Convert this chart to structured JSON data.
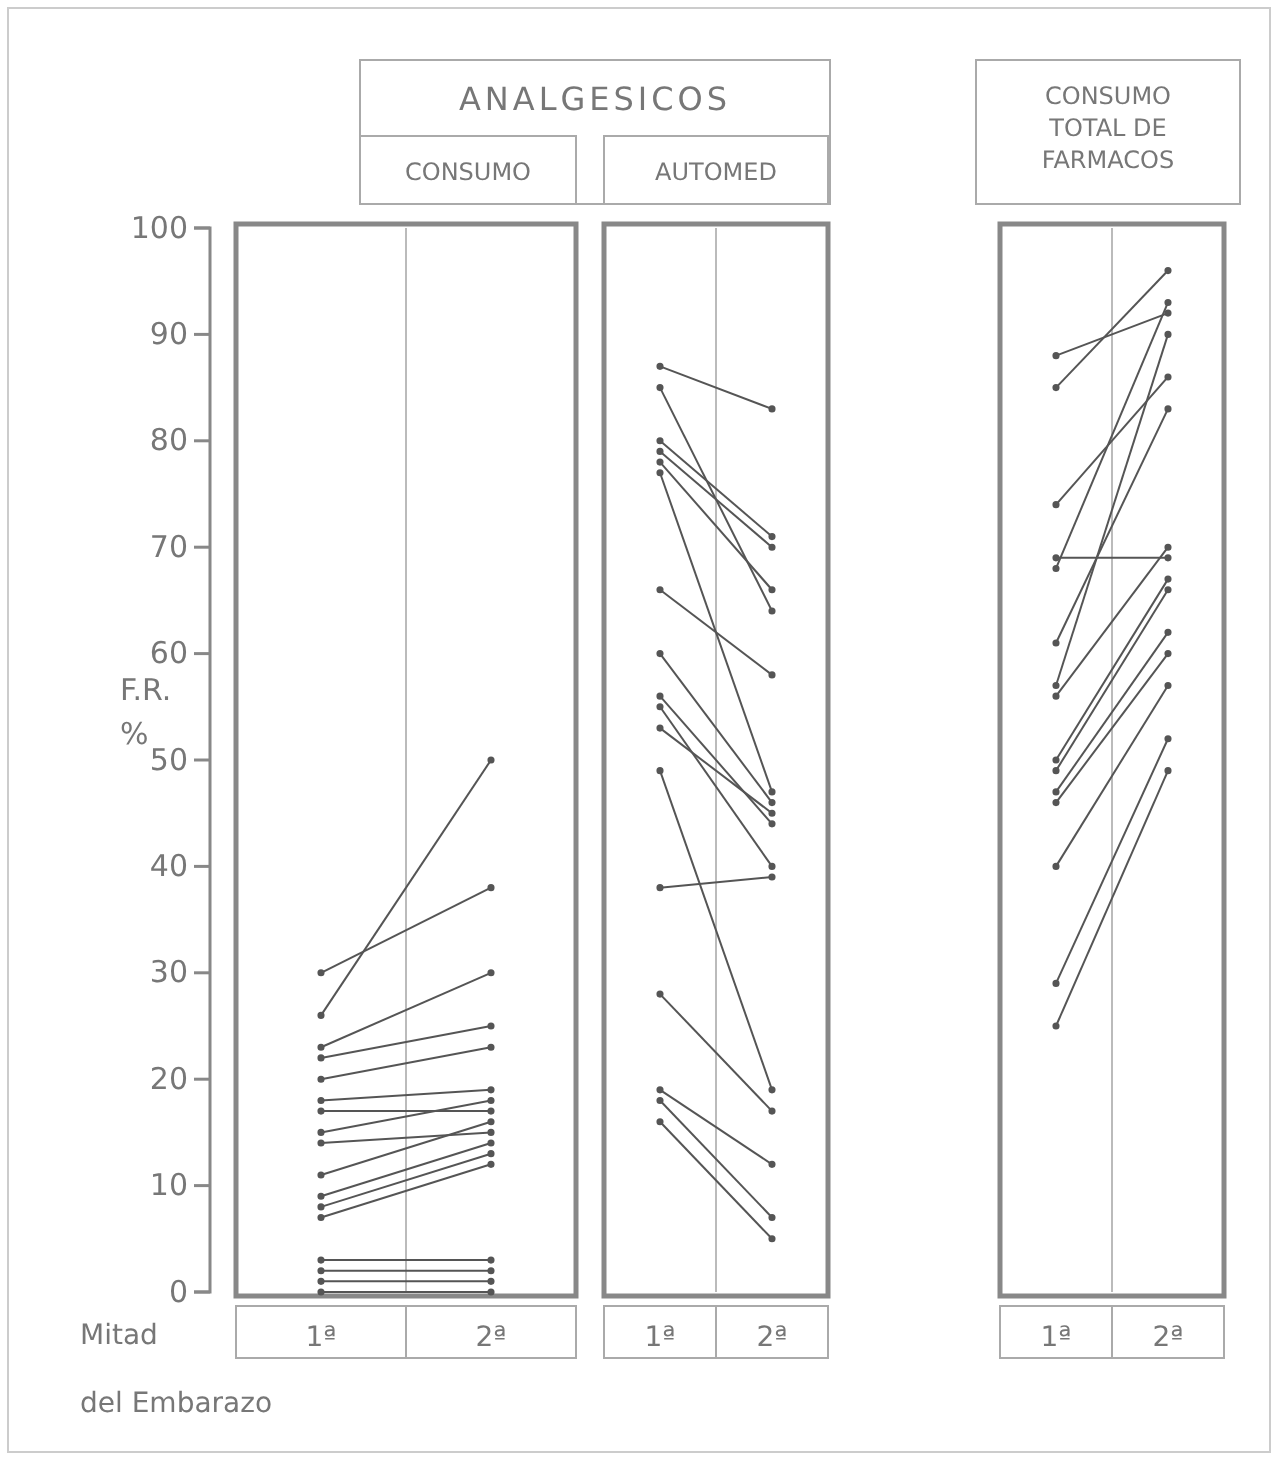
{
  "chart_data": [
    {
      "type": "line",
      "title": "ANALGESICOS",
      "subtitle": "CONSUMO",
      "ylabel": "F.R. %",
      "xlabel": "Mitad del Embarazo",
      "categories": [
        "1ª",
        "2ª"
      ],
      "ylim": [
        0,
        100
      ],
      "yticks": [
        0,
        10,
        20,
        30,
        40,
        50,
        60,
        70,
        80,
        90,
        100
      ],
      "marker": "circle",
      "series": [
        {
          "color": "#555555",
          "values": [
            26,
            50
          ]
        },
        {
          "color": "#555555",
          "values": [
            30,
            38
          ]
        },
        {
          "color": "#555555",
          "values": [
            23,
            30
          ]
        },
        {
          "color": "#555555",
          "values": [
            22,
            25
          ]
        },
        {
          "color": "#555555",
          "values": [
            20,
            23
          ]
        },
        {
          "color": "#555555",
          "values": [
            18,
            19
          ]
        },
        {
          "color": "#555555",
          "values": [
            17,
            17
          ]
        },
        {
          "color": "#555555",
          "values": [
            15,
            18
          ]
        },
        {
          "color": "#555555",
          "values": [
            14,
            15
          ]
        },
        {
          "color": "#555555",
          "values": [
            11,
            16
          ]
        },
        {
          "color": "#555555",
          "values": [
            9,
            14
          ]
        },
        {
          "color": "#555555",
          "values": [
            8,
            13
          ]
        },
        {
          "color": "#555555",
          "values": [
            7,
            12
          ]
        },
        {
          "color": "#555555",
          "values": [
            3,
            3
          ]
        },
        {
          "color": "#555555",
          "values": [
            2,
            2
          ]
        },
        {
          "color": "#555555",
          "values": [
            1,
            1
          ]
        },
        {
          "color": "#555555",
          "values": [
            0,
            0
          ]
        }
      ]
    },
    {
      "type": "line",
      "subtitle": "AUTOMED",
      "categories": [
        "1ª",
        "2ª"
      ],
      "ylim": [
        0,
        100
      ],
      "tick_labels": "x",
      "marker": "circle",
      "series": [
        {
          "color": "#555555",
          "values": [
            87,
            83
          ]
        },
        {
          "color": "#555555",
          "values": [
            85,
            64
          ]
        },
        {
          "color": "#555555",
          "values": [
            80,
            71
          ]
        },
        {
          "color": "#555555",
          "values": [
            79,
            70
          ]
        },
        {
          "color": "#555555",
          "values": [
            78,
            66
          ]
        },
        {
          "color": "#555555",
          "values": [
            77,
            47
          ]
        },
        {
          "color": "#555555",
          "values": [
            66,
            58
          ]
        },
        {
          "color": "#555555",
          "values": [
            60,
            46
          ]
        },
        {
          "color": "#555555",
          "values": [
            56,
            44
          ]
        },
        {
          "color": "#555555",
          "values": [
            55,
            40
          ]
        },
        {
          "color": "#555555",
          "values": [
            53,
            45
          ]
        },
        {
          "color": "#555555",
          "values": [
            49,
            19
          ]
        },
        {
          "color": "#555555",
          "values": [
            38,
            39
          ]
        },
        {
          "color": "#555555",
          "values": [
            28,
            17
          ]
        },
        {
          "color": "#555555",
          "values": [
            19,
            12
          ]
        },
        {
          "color": "#555555",
          "values": [
            18,
            7
          ]
        },
        {
          "color": "#555555",
          "values": [
            16,
            5
          ]
        }
      ]
    },
    {
      "type": "line",
      "title": "CONSUMO TOTAL DE FARMACOS",
      "categories": [
        "1ª",
        "2ª"
      ],
      "ylim": [
        0,
        100
      ],
      "tick_labels": "x",
      "marker": "circle",
      "series": [
        {
          "color": "#555555",
          "values": [
            88,
            92
          ]
        },
        {
          "color": "#555555",
          "values": [
            85,
            96
          ]
        },
        {
          "color": "#555555",
          "values": [
            74,
            86
          ]
        },
        {
          "color": "#555555",
          "values": [
            69,
            69
          ]
        },
        {
          "color": "#555555",
          "values": [
            68,
            93
          ]
        },
        {
          "color": "#555555",
          "values": [
            61,
            83
          ]
        },
        {
          "color": "#555555",
          "values": [
            57,
            90
          ]
        },
        {
          "color": "#555555",
          "values": [
            56,
            70
          ]
        },
        {
          "color": "#555555",
          "values": [
            50,
            67
          ]
        },
        {
          "color": "#555555",
          "values": [
            49,
            66
          ]
        },
        {
          "color": "#555555",
          "values": [
            47,
            62
          ]
        },
        {
          "color": "#555555",
          "values": [
            46,
            60
          ]
        },
        {
          "color": "#555555",
          "values": [
            40,
            57
          ]
        },
        {
          "color": "#555555",
          "values": [
            29,
            52
          ]
        },
        {
          "color": "#555555",
          "values": [
            25,
            49
          ]
        }
      ]
    }
  ]
}
